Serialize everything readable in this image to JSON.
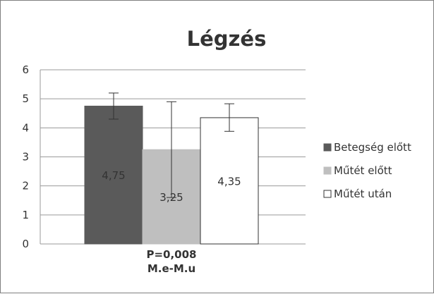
{
  "chart_data": {
    "type": "bar",
    "title": "Légzés",
    "categories": [
      "P=0,008\nM.e-M.u"
    ],
    "series": [
      {
        "name": "Betegség előtt",
        "color": "#5a5a5a",
        "values": [
          4.75
        ],
        "error_low": [
          4.3
        ],
        "error_high": [
          5.2
        ],
        "label": "4,75"
      },
      {
        "name": "Műtét előtt",
        "color": "#bfbfbf",
        "values": [
          3.25
        ],
        "error_low": [
          1.6
        ],
        "error_high": [
          4.9
        ],
        "label": "3,25"
      },
      {
        "name": "Műtét után",
        "color": "#ffffff",
        "values": [
          4.35
        ],
        "error_low": [
          3.88
        ],
        "error_high": [
          4.83
        ],
        "label": "4,35"
      }
    ],
    "category_label_lines": [
      "P=0,008",
      "M.e-M.u"
    ],
    "ylim": [
      0,
      6
    ],
    "yticks": [
      "0",
      "1",
      "2",
      "3",
      "4",
      "5",
      "6"
    ],
    "grid": true,
    "legend_position": "right"
  }
}
